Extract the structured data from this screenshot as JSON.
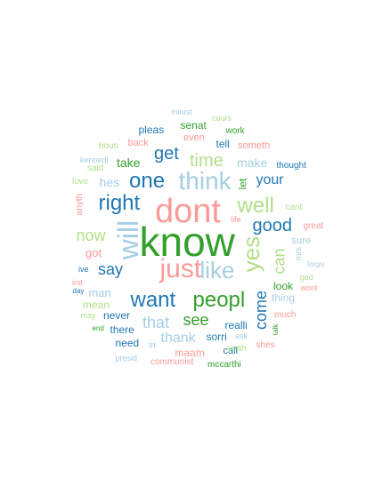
{
  "palette": {
    "dark_blue": "#1f78b4",
    "light_blue": "#a6cee3",
    "dark_green": "#33a02c",
    "light_green": "#b2df8a",
    "pink": "#fb9a99",
    "red": "#e31a1c"
  },
  "words": [
    {
      "text": "know",
      "color": "dark_green",
      "vertical": false
    },
    {
      "text": "dont",
      "color": "pink",
      "vertical": false
    },
    {
      "text": "just",
      "color": "pink",
      "vertical": false
    },
    {
      "text": "think",
      "color": "light_blue",
      "vertical": false
    },
    {
      "text": "like",
      "color": "light_blue",
      "vertical": false
    },
    {
      "text": "will",
      "color": "light_blue",
      "vertical": true
    },
    {
      "text": "right",
      "color": "dark_blue",
      "vertical": false
    },
    {
      "text": "want",
      "color": "dark_blue",
      "vertical": false
    },
    {
      "text": "peopl",
      "color": "dark_green",
      "vertical": false
    },
    {
      "text": "one",
      "color": "dark_blue",
      "vertical": false
    },
    {
      "text": "yes",
      "color": "light_green",
      "vertical": true
    },
    {
      "text": "well",
      "color": "light_green",
      "vertical": false
    },
    {
      "text": "good",
      "color": "dark_blue",
      "vertical": false
    },
    {
      "text": "get",
      "color": "dark_blue",
      "vertical": false
    },
    {
      "text": "time",
      "color": "light_green",
      "vertical": false
    },
    {
      "text": "now",
      "color": "light_green",
      "vertical": false
    },
    {
      "text": "say",
      "color": "dark_blue",
      "vertical": false
    },
    {
      "text": "come",
      "color": "dark_blue",
      "vertical": true
    },
    {
      "text": "see",
      "color": "dark_green",
      "vertical": false
    },
    {
      "text": "that",
      "color": "light_blue",
      "vertical": false
    },
    {
      "text": "can",
      "color": "light_green",
      "vertical": true
    },
    {
      "text": "your",
      "color": "dark_blue",
      "vertical": false
    },
    {
      "text": "thank",
      "color": "light_blue",
      "vertical": false
    },
    {
      "text": "hes",
      "color": "light_blue",
      "vertical": false
    },
    {
      "text": "make",
      "color": "light_blue",
      "vertical": false
    },
    {
      "text": "take",
      "color": "dark_green",
      "vertical": false
    },
    {
      "text": "pleas",
      "color": "dark_blue",
      "vertical": false
    },
    {
      "text": "senat",
      "color": "dark_green",
      "vertical": false
    },
    {
      "text": "tell",
      "color": "dark_blue",
      "vertical": false
    },
    {
      "text": "got",
      "color": "pink",
      "vertical": false
    },
    {
      "text": "let",
      "color": "dark_green",
      "vertical": true
    },
    {
      "text": "man",
      "color": "light_blue",
      "vertical": false
    },
    {
      "text": "sorri",
      "color": "dark_blue",
      "vertical": false
    },
    {
      "text": "realli",
      "color": "dark_blue",
      "vertical": false
    },
    {
      "text": "look",
      "color": "dark_green",
      "vertical": false
    },
    {
      "text": "thing",
      "color": "light_blue",
      "vertical": false
    },
    {
      "text": "sure",
      "color": "light_blue",
      "vertical": false
    },
    {
      "text": "mean",
      "color": "light_green",
      "vertical": false
    },
    {
      "text": "never",
      "color": "dark_blue",
      "vertical": false
    },
    {
      "text": "there",
      "color": "dark_blue",
      "vertical": false
    },
    {
      "text": "need",
      "color": "dark_blue",
      "vertical": false
    },
    {
      "text": "maam",
      "color": "pink",
      "vertical": false
    },
    {
      "text": "call",
      "color": "dark_blue",
      "vertical": false
    },
    {
      "text": "even",
      "color": "pink",
      "vertical": false
    },
    {
      "text": "back",
      "color": "pink",
      "vertical": false
    },
    {
      "text": "work",
      "color": "dark_green",
      "vertical": false
    },
    {
      "text": "someth",
      "color": "pink",
      "vertical": false
    },
    {
      "text": "thought",
      "color": "dark_blue",
      "vertical": false
    },
    {
      "text": "said",
      "color": "light_green",
      "vertical": false
    },
    {
      "text": "love",
      "color": "light_green",
      "vertical": false
    },
    {
      "text": "hous",
      "color": "light_green",
      "vertical": false
    },
    {
      "text": "kennedi",
      "color": "light_blue",
      "vertical": false
    },
    {
      "text": "minist",
      "color": "light_blue",
      "vertical": false
    },
    {
      "text": "cours",
      "color": "light_green",
      "vertical": false
    },
    {
      "text": "cant",
      "color": "light_green",
      "vertical": false
    },
    {
      "text": "great",
      "color": "pink",
      "vertical": false
    },
    {
      "text": "life",
      "color": "pink",
      "vertical": false
    },
    {
      "text": "mrs",
      "color": "light_blue",
      "vertical": true
    },
    {
      "text": "forgiv",
      "color": "light_blue",
      "vertical": false
    },
    {
      "text": "god",
      "color": "light_green",
      "vertical": false
    },
    {
      "text": "wont",
      "color": "pink",
      "vertical": false
    },
    {
      "text": "much",
      "color": "pink",
      "vertical": false
    },
    {
      "text": "talk",
      "color": "dark_green",
      "vertical": true
    },
    {
      "text": "shes",
      "color": "pink",
      "vertical": false
    },
    {
      "text": "yeah",
      "color": "light_green",
      "vertical": false
    },
    {
      "text": "ask",
      "color": "light_blue",
      "vertical": false
    },
    {
      "text": "tri",
      "color": "light_blue",
      "vertical": false
    },
    {
      "text": "presid",
      "color": "light_blue",
      "vertical": false
    },
    {
      "text": "communist",
      "color": "pink",
      "vertical": false
    },
    {
      "text": "mccarthi",
      "color": "dark_green",
      "vertical": false
    },
    {
      "text": "end",
      "color": "dark_green",
      "vertical": false
    },
    {
      "text": "may",
      "color": "light_green",
      "vertical": false
    },
    {
      "text": "day",
      "color": "dark_blue",
      "vertical": false
    },
    {
      "text": "irst",
      "color": "pink",
      "vertical": false
    },
    {
      "text": "ive",
      "color": "dark_blue",
      "vertical": false
    },
    {
      "text": "anyth",
      "color": "pink",
      "vertical": true
    }
  ]
}
